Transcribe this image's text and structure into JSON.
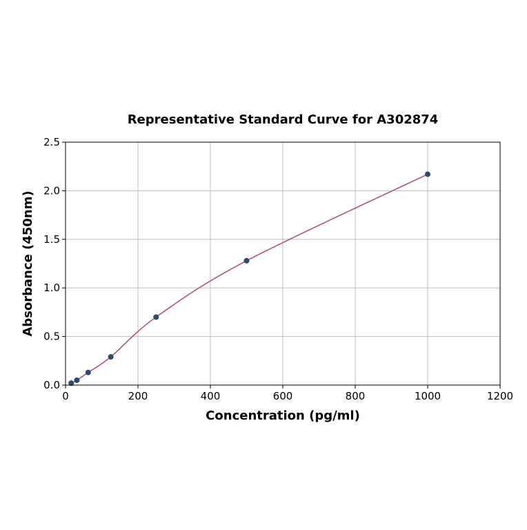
{
  "chart_data": {
    "type": "scatter",
    "title": "Representative Standard Curve for A302874",
    "xlabel": "Concentration (pg/ml)",
    "ylabel": "Absorbance (450nm)",
    "xlim": [
      0,
      1200
    ],
    "ylim": [
      0,
      2.5
    ],
    "xticks": [
      0,
      200,
      400,
      600,
      800,
      1000,
      1200
    ],
    "yticks": [
      0.0,
      0.5,
      1.0,
      1.5,
      2.0,
      2.5
    ],
    "xtick_labels": [
      "0",
      "200",
      "400",
      "600",
      "800",
      "1000",
      "1200"
    ],
    "ytick_labels": [
      "0.0",
      "0.5",
      "1.0",
      "1.5",
      "2.0",
      "2.5"
    ],
    "grid": true,
    "points": {
      "x": [
        15.6,
        31.25,
        62.5,
        125,
        250,
        500,
        1000
      ],
      "y": [
        0.02,
        0.05,
        0.13,
        0.29,
        0.7,
        1.28,
        2.17
      ]
    },
    "fit_curve": true,
    "colors": {
      "points": "#2e4a6b",
      "curve": "#b5476b",
      "grid": "#b0b0b0"
    }
  }
}
